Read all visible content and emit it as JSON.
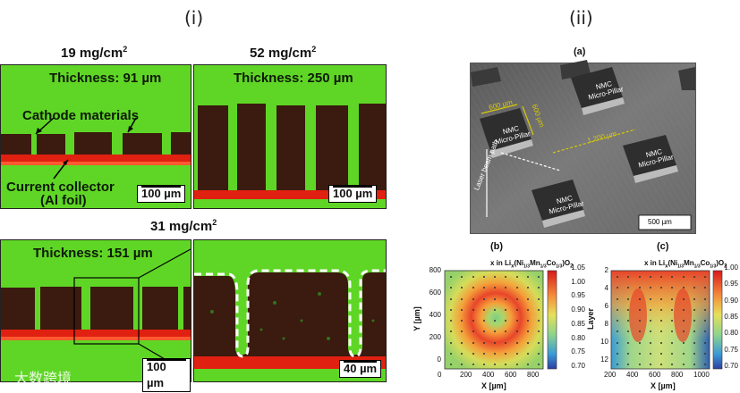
{
  "left": {
    "roman": "(i)",
    "top_left": {
      "loading": "19 mg/cm",
      "loading_sup": "2",
      "thickness": "Thickness: 91 µm",
      "cathode_label": "Cathode materials",
      "collector_label": "Current collector",
      "collector_sub": "(Al foil)",
      "scale": "100 µm"
    },
    "top_right": {
      "loading": "52 mg/cm",
      "loading_sup": "2",
      "thickness": "Thickness: 250 µm",
      "scale": "100 µm"
    },
    "bottom": {
      "loading": "31 mg/cm",
      "loading_sup": "2",
      "thickness": "Thickness: 151 µm",
      "scale": "100 µm",
      "zoom_scale": "40 µm"
    }
  },
  "right": {
    "roman": "(ii)",
    "sem": {
      "label": "(a)",
      "pillar_text_1": "NMC",
      "pillar_text_2": "Micro-Pillar",
      "dim_600a": "600 µm",
      "dim_600b": "600 µm",
      "dim_1200": "1 200 µm",
      "laser_path": "Laser beam path",
      "scale": "500 µm"
    },
    "map_b": {
      "label": "(b)",
      "title_pre": "x in Li",
      "title_x": "x",
      "title_mid": "(Ni",
      "s1": "1/3",
      "mn": "Mn",
      "s2": "1/3",
      "co": "Co",
      "s3": "1/3",
      "end": ")O",
      "o2": "2",
      "xlabel": "X [µm]",
      "ylabel": "Y [µm]",
      "xticks": [
        "0",
        "200",
        "400",
        "600",
        "800"
      ],
      "yticks": [
        "0",
        "200",
        "400",
        "600",
        "800"
      ],
      "cbar": [
        "1.05",
        "1.00",
        "0.95",
        "0.90",
        "0.85",
        "0.80",
        "0.75",
        "0.70"
      ]
    },
    "map_c": {
      "label": "(c)",
      "title_pre": "x in Li",
      "title_x": "x",
      "title_mid": "(Ni",
      "s1": "1/3",
      "mn": "Mn",
      "s2": "1/3",
      "co": "Co",
      "s3": "1/3",
      "end": ")O",
      "o2": "2",
      "xlabel": "X [µm]",
      "ylabel": "Layer",
      "xticks": [
        "200",
        "400",
        "600",
        "800",
        "1000"
      ],
      "yticks": [
        "2",
        "4",
        "6",
        "8",
        "10",
        "12"
      ],
      "cbar": [
        "1.00",
        "0.95",
        "0.90",
        "0.85",
        "0.80",
        "0.75",
        "0.70"
      ]
    }
  },
  "watermark": "大数跨境",
  "colors": {
    "green": "#63d62a",
    "cathode": "#3b1a0f",
    "collector": "#e02010",
    "accent": "#d8c80a"
  }
}
